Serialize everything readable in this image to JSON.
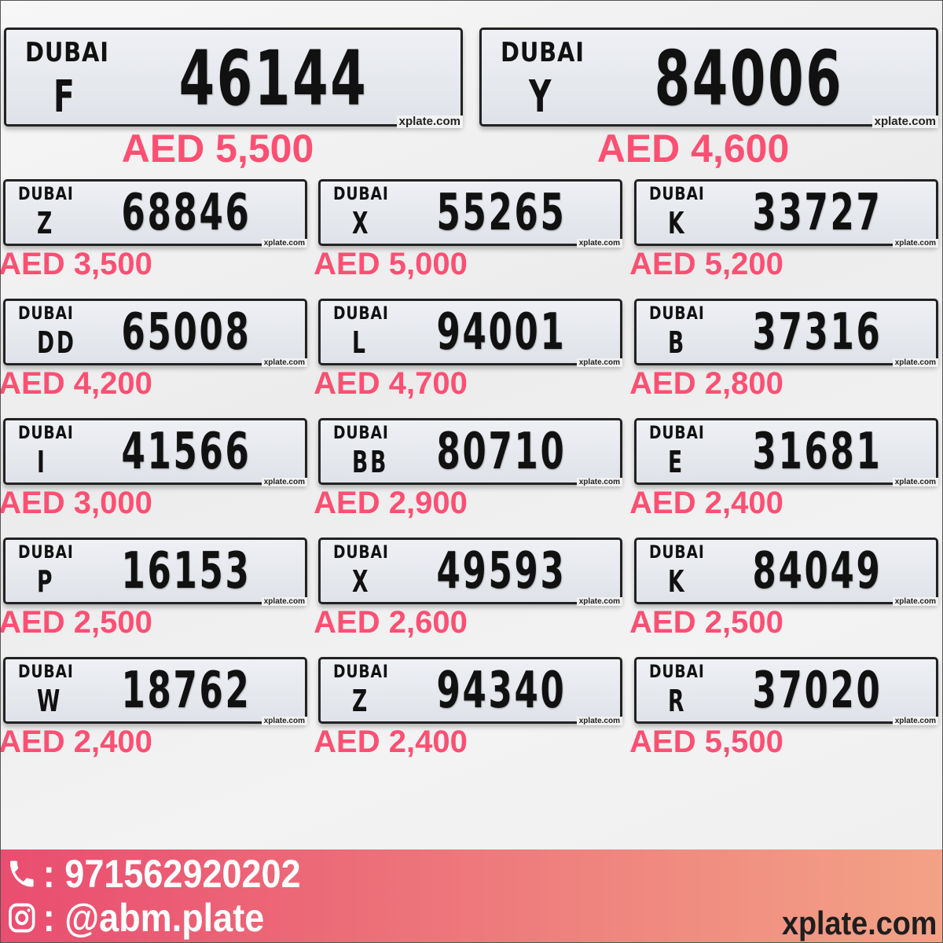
{
  "plate_emirate": "DUBAI",
  "plate_watermark": "xplate.com",
  "big_plates": [
    {
      "code": "F",
      "number": "46144",
      "price": "AED 5,500"
    },
    {
      "code": "Y",
      "number": "84006",
      "price": "AED 4,600"
    }
  ],
  "plates": [
    {
      "code": "Z",
      "number": "68846",
      "price": "AED 3,500"
    },
    {
      "code": "X",
      "number": "55265",
      "price": "AED 5,000"
    },
    {
      "code": "K",
      "number": "33727",
      "price": "AED 5,200"
    },
    {
      "code": "DD",
      "number": "65008",
      "price": "AED 4,200"
    },
    {
      "code": "L",
      "number": "94001",
      "price": "AED 4,700"
    },
    {
      "code": "B",
      "number": "37316",
      "price": "AED 2,800"
    },
    {
      "code": "I",
      "number": "41566",
      "price": "AED 3,000"
    },
    {
      "code": "BB",
      "number": "80710",
      "price": "AED 2,900"
    },
    {
      "code": "E",
      "number": "31681",
      "price": "AED 2,400"
    },
    {
      "code": "P",
      "number": "16153",
      "price": "AED 2,500"
    },
    {
      "code": "X",
      "number": "49593",
      "price": "AED 2,600"
    },
    {
      "code": "K",
      "number": "84049",
      "price": "AED 2,500"
    },
    {
      "code": "W",
      "number": "18762",
      "price": "AED 2,400"
    },
    {
      "code": "Z",
      "number": "94340",
      "price": "AED 2,400"
    },
    {
      "code": "R",
      "number": "37020",
      "price": "AED 5,500"
    }
  ],
  "footer": {
    "phone_icon": "phone-icon",
    "phone": ": 971562920202",
    "instagram_icon": "instagram-icon",
    "instagram": ": @abm.plate",
    "site": "xplate.com"
  },
  "colors": {
    "price": "#fb5073",
    "bar_start": "#ea4d70",
    "bar_end": "#f3a286"
  }
}
